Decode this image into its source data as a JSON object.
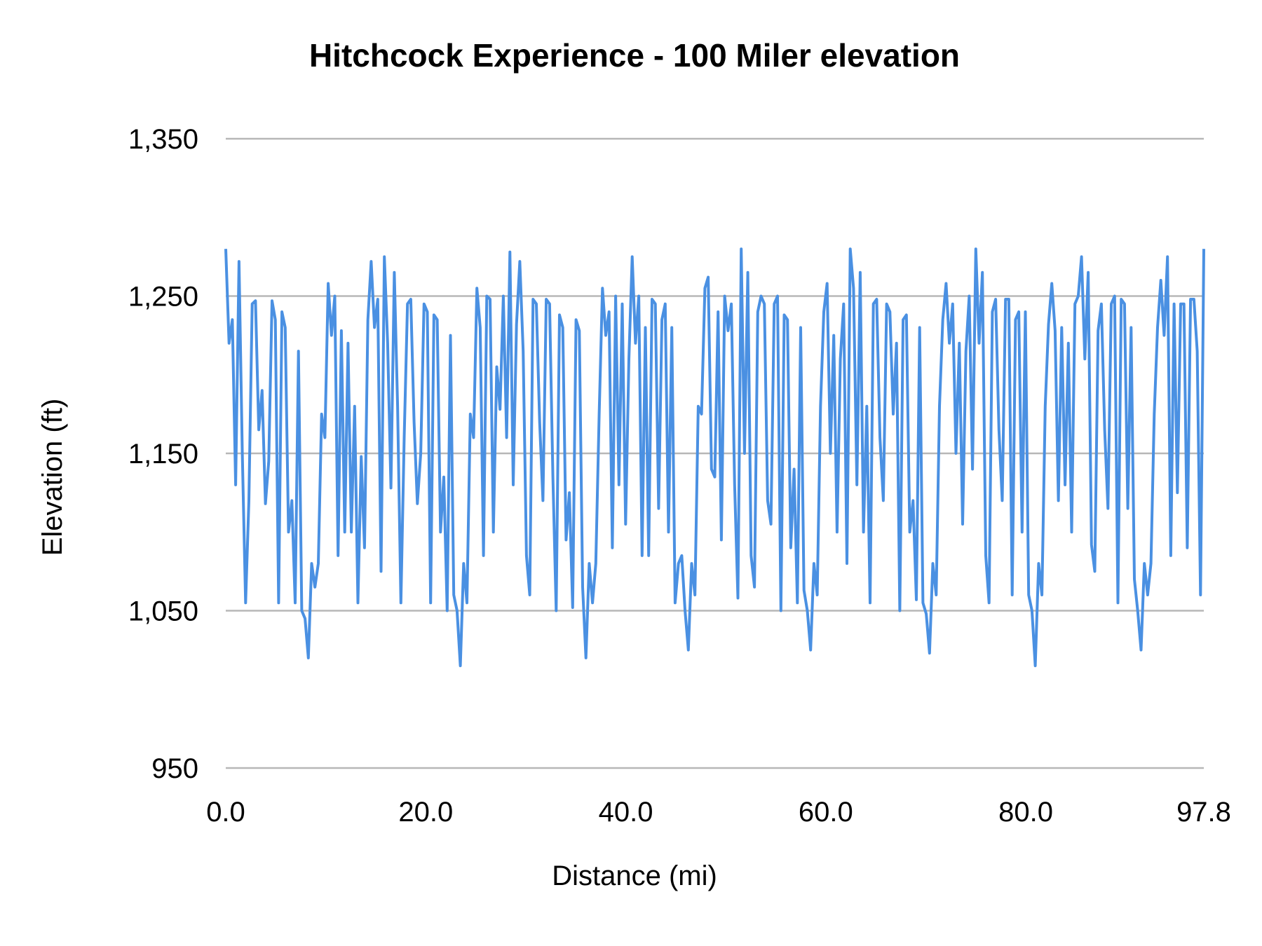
{
  "chart_data": {
    "type": "line",
    "title": "Hitchcock Experience - 100 Miler elevation",
    "xlabel": "Distance (mi)",
    "ylabel": "Elevation (ft)",
    "xlim": [
      0,
      97.8
    ],
    "ylim": [
      950,
      1350
    ],
    "x_tick_labels": [
      "0.0",
      "20.0",
      "40.0",
      "60.0",
      "80.0",
      "97.8"
    ],
    "x_ticks": [
      0,
      20,
      40,
      60,
      80,
      97.8
    ],
    "y_tick_labels": [
      "1,350",
      "1,250",
      "1,150",
      "1,050",
      "950"
    ],
    "y_ticks": [
      1350,
      1250,
      1150,
      1050,
      950
    ],
    "grid": "horizontal",
    "legend": "none",
    "line_color": "#4a90e2",
    "series": [
      {
        "elevation_ft": [
          1280,
          1220,
          1235,
          1130,
          1272,
          1150,
          1055,
          1120,
          1245,
          1247,
          1165,
          1190,
          1118,
          1145,
          1247,
          1235,
          1055,
          1240,
          1230,
          1100,
          1120,
          1055,
          1215,
          1050,
          1045,
          1020,
          1080,
          1065,
          1080,
          1175,
          1160,
          1258,
          1225,
          1250,
          1085,
          1228,
          1100,
          1220,
          1100,
          1180,
          1055,
          1148,
          1090,
          1235,
          1272,
          1230,
          1248,
          1075,
          1275,
          1220,
          1128,
          1265,
          1180,
          1055,
          1160,
          1245,
          1248,
          1170,
          1118,
          1150,
          1245,
          1240,
          1055,
          1238,
          1235,
          1100,
          1135,
          1050,
          1225,
          1060,
          1050,
          1015,
          1080,
          1055,
          1175,
          1160,
          1255,
          1230,
          1085,
          1250,
          1248,
          1100,
          1205,
          1178,
          1250,
          1160,
          1278,
          1130,
          1232,
          1272,
          1215,
          1085,
          1060,
          1248,
          1245,
          1170,
          1120,
          1248,
          1245,
          1135,
          1050,
          1238,
          1230,
          1095,
          1125,
          1052,
          1235,
          1228,
          1065,
          1020,
          1080,
          1055,
          1080,
          1175,
          1255,
          1225,
          1240,
          1090,
          1250,
          1130,
          1245,
          1105,
          1210,
          1275,
          1220,
          1250,
          1085,
          1230,
          1085,
          1248,
          1245,
          1115,
          1235,
          1245,
          1100,
          1230,
          1055,
          1080,
          1085,
          1050,
          1025,
          1080,
          1060,
          1180,
          1175,
          1255,
          1262,
          1140,
          1135,
          1240,
          1095,
          1250,
          1228,
          1245,
          1130,
          1058,
          1280,
          1150,
          1265,
          1085,
          1065,
          1240,
          1250,
          1245,
          1120,
          1105,
          1245,
          1250,
          1050,
          1238,
          1235,
          1090,
          1140,
          1055,
          1230,
          1063,
          1050,
          1025,
          1080,
          1060,
          1180,
          1240,
          1258,
          1150,
          1225,
          1100,
          1210,
          1245,
          1080,
          1280,
          1255,
          1130,
          1265,
          1100,
          1180,
          1055,
          1245,
          1248,
          1160,
          1120,
          1245,
          1240,
          1175,
          1220,
          1050,
          1235,
          1238,
          1100,
          1120,
          1057,
          1230,
          1055,
          1048,
          1023,
          1080,
          1060,
          1180,
          1235,
          1258,
          1220,
          1245,
          1150,
          1220,
          1105,
          1215,
          1250,
          1140,
          1280,
          1220,
          1265,
          1085,
          1055,
          1240,
          1248,
          1165,
          1120,
          1248,
          1248,
          1060,
          1235,
          1240,
          1100,
          1240,
          1060,
          1050,
          1015,
          1080,
          1060,
          1180,
          1232,
          1258,
          1228,
          1120,
          1230,
          1130,
          1220,
          1100,
          1245,
          1250,
          1275,
          1210,
          1265,
          1092,
          1075,
          1228,
          1245,
          1165,
          1115,
          1245,
          1250,
          1055,
          1248,
          1245,
          1115,
          1230,
          1070,
          1050,
          1025,
          1080,
          1060,
          1080,
          1175,
          1230,
          1260,
          1225,
          1275,
          1085,
          1245,
          1125,
          1245,
          1245,
          1090,
          1248,
          1248,
          1215,
          1060,
          1280
        ]
      }
    ]
  }
}
